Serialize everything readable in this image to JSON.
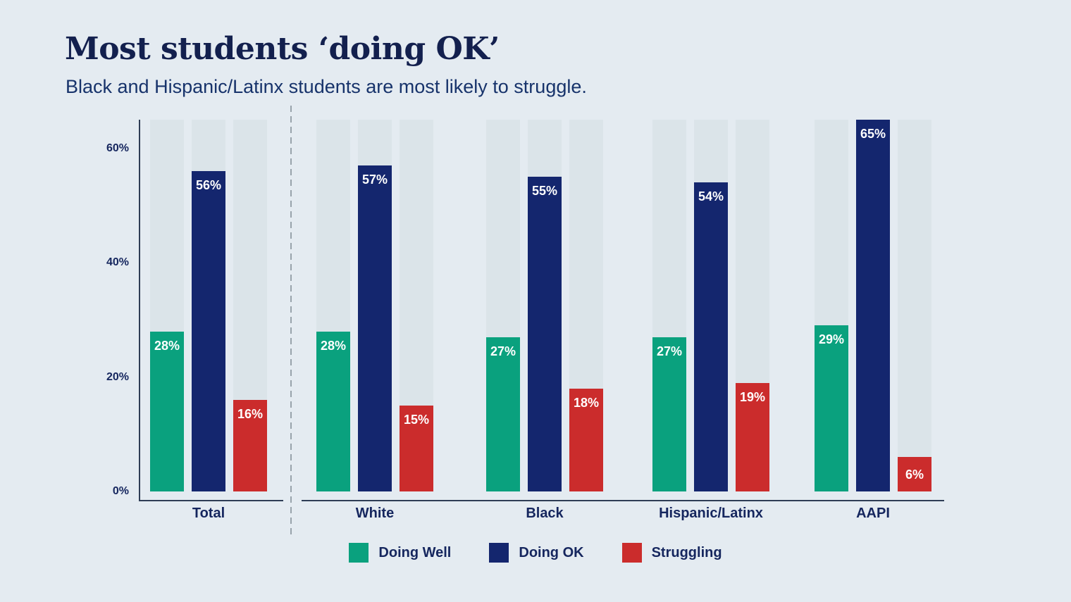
{
  "header": {
    "title": "Most students ‘doing OK’",
    "subtitle": "Black and Hispanic/Latinx students are most likely to struggle."
  },
  "chart_data": {
    "type": "bar",
    "title": "Most students ‘doing OK’",
    "subtitle": "Black and Hispanic/Latinx students are most likely to struggle.",
    "categories": [
      "Total",
      "White",
      "Black",
      "Hispanic/Latinx",
      "AAPI"
    ],
    "series": [
      {
        "name": "Doing Well",
        "color": "#0aa17e",
        "values": [
          28,
          28,
          27,
          27,
          29
        ]
      },
      {
        "name": "Doing OK",
        "color": "#14266e",
        "values": [
          56,
          57,
          55,
          54,
          65
        ]
      },
      {
        "name": "Struggling",
        "color": "#cb2c2c",
        "values": [
          16,
          15,
          18,
          19,
          6
        ]
      }
    ],
    "value_suffix": "%",
    "data_labels": [
      "28%",
      "56%",
      "16%",
      "28%",
      "57%",
      "15%",
      "27%",
      "55%",
      "18%",
      "27%",
      "54%",
      "19%",
      "29%",
      "65%",
      "6%"
    ],
    "yticks": [
      0,
      20,
      40,
      60
    ],
    "ytick_labels": [
      "0%",
      "20%",
      "40%",
      "60%"
    ],
    "ylim": [
      0,
      65
    ],
    "grid": false,
    "legend_position": "bottom",
    "separator_after_category": "Total"
  },
  "colors": {
    "background": "#e4ebf1",
    "title_text": "#13204e",
    "subtitle_text": "#17336b",
    "label_text": "#15265e",
    "axis_line": "#2e3d55",
    "bar_track": "#dbe4e9",
    "separator_dash": "#98a3ab",
    "bar_value_text": "#ffffff"
  }
}
